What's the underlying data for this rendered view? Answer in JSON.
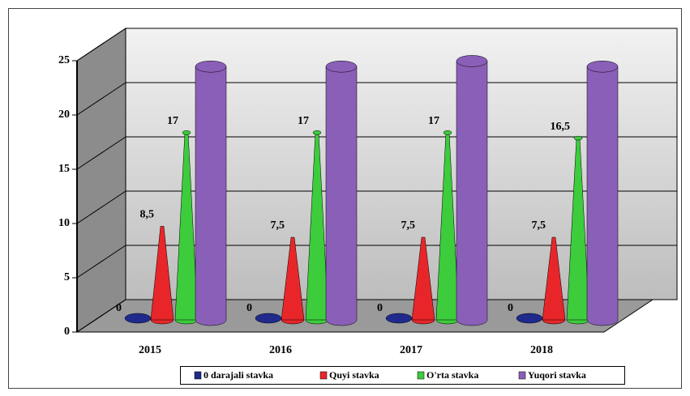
{
  "chart_data": {
    "type": "bar3d",
    "categories": [
      "2015",
      "2016",
      "2017",
      "2018"
    ],
    "series": [
      {
        "name": "0 darajali stavka",
        "color": "#1f2a8c",
        "shape": "disc",
        "values": [
          0,
          0,
          0,
          0
        ],
        "value_labels": [
          "0",
          "0",
          "0",
          "0"
        ]
      },
      {
        "name": "Quyi stavka",
        "color": "#e8262a",
        "shape": "cone",
        "values": [
          8.5,
          7.5,
          7.5,
          7.5
        ],
        "value_labels": [
          "8,5",
          "7,5",
          "7,5",
          "7,5"
        ]
      },
      {
        "name": "O'rta stavka",
        "color": "#3ccc3c",
        "shape": "cone",
        "values": [
          17,
          17,
          17,
          16.5
        ],
        "value_labels": [
          "17",
          "17",
          "17",
          "16,5"
        ]
      },
      {
        "name": "Yuqori stavka",
        "color": "#8a5fb8",
        "shape": "cylinder",
        "values": [
          23,
          23,
          23.5,
          23
        ]
      }
    ],
    "ylim": [
      0,
      25
    ],
    "yticks": [
      0,
      5,
      10,
      15,
      20,
      25
    ],
    "grid": true
  }
}
